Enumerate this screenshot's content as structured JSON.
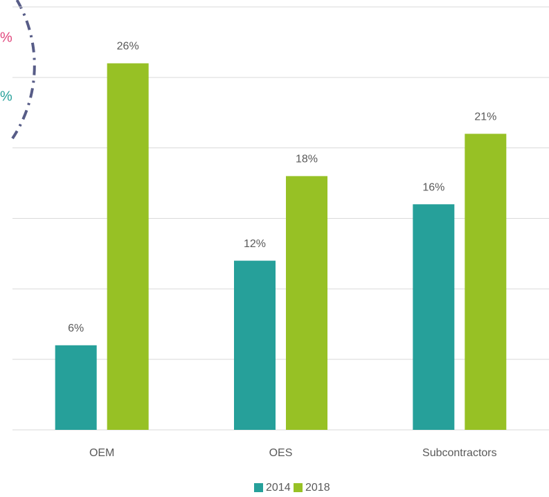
{
  "chart_data": {
    "type": "bar",
    "categories": [
      "OEM",
      "OES",
      "Subcontractors"
    ],
    "series": [
      {
        "name": "2014",
        "color": "#26a09a",
        "values": [
          6,
          12,
          16
        ],
        "value_labels": [
          "6%",
          "12%",
          "16%"
        ]
      },
      {
        "name": "2018",
        "color": "#97c125",
        "values": [
          26,
          18,
          21
        ],
        "value_labels": [
          "26%",
          "18%",
          "21%"
        ]
      }
    ],
    "ylim": [
      0,
      30
    ],
    "yticks": [
      0,
      5,
      10,
      15,
      20,
      25,
      30
    ],
    "grid": true,
    "annotations": [
      {
        "text": "%",
        "color": "#e0457b"
      },
      {
        "text": "%",
        "color": "#26a09a"
      }
    ]
  }
}
